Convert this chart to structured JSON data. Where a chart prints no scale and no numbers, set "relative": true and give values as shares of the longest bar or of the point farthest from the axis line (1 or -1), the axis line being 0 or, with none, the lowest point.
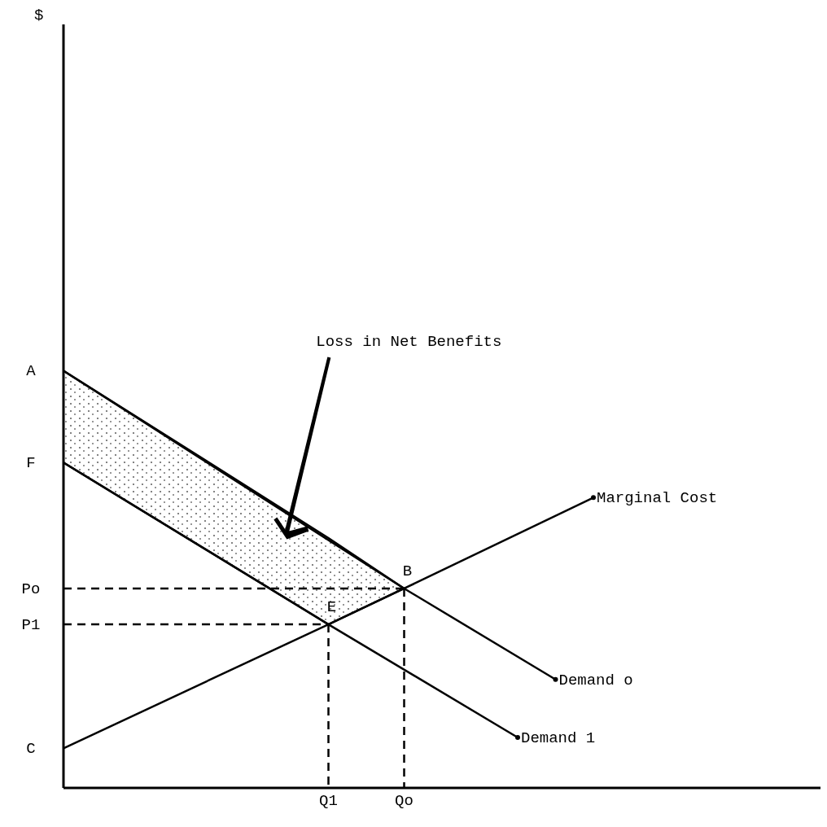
{
  "chart_data": {
    "type": "line",
    "relative": true,
    "categories": [
      null,
      null,
      null,
      null,
      null,
      null,
      null,
      "Q1",
      null,
      "Qo",
      null,
      null,
      null,
      null,
      null,
      null,
      null,
      null,
      null,
      null,
      null
    ],
    "series": [
      {
        "color": "#000000",
        "line_style": "solid",
        "values": [
          1,
          null,
          null,
          null,
          null,
          null,
          null,
          0.599,
          null,
          0.478,
          null,
          null,
          null,
          null,
          null,
          null,
          null,
          null,
          null,
          null,
          null
        ],
        "lower": [
          0.78,
          null,
          null,
          null,
          null,
          null,
          null,
          0.392,
          null,
          0.478,
          null,
          null,
          null,
          null,
          null,
          null,
          null,
          null,
          null,
          null,
          null
        ],
        "upper": [
          1,
          null,
          null,
          null,
          null,
          null,
          null,
          0.599,
          null,
          0.478,
          null,
          null,
          null,
          null,
          null,
          null,
          null,
          null,
          null,
          null,
          null
        ]
      },
      {
        "name": "Demand o",
        "color": "#000000",
        "line_style": "solid",
        "values": [
          1,
          null,
          null,
          null,
          null,
          null,
          null,
          null,
          null,
          0.478,
          null,
          null,
          null,
          0.26,
          null,
          null,
          null,
          null,
          null,
          null,
          null
        ]
      },
      {
        "name": "Demand 1",
        "color": "#000000",
        "line_style": "solid",
        "values": [
          0.78,
          null,
          null,
          null,
          null,
          null,
          null,
          0.392,
          null,
          null,
          null,
          null,
          0.121,
          null,
          null,
          null,
          null,
          null,
          null,
          null,
          null
        ]
      },
      {
        "name": "Marginal Cost",
        "color": "#000000",
        "line_style": "solid",
        "values": [
          0.095,
          null,
          null,
          null,
          null,
          null,
          null,
          0.392,
          null,
          0.478,
          null,
          null,
          null,
          null,
          0.696,
          null,
          null,
          null,
          null,
          null,
          null
        ]
      },
      {
        "color": "#000000",
        "line_style": "dashed",
        "values": [
          0.478,
          null,
          null,
          null,
          null,
          null,
          null,
          null,
          null,
          0.478,
          null,
          null,
          null,
          null,
          null,
          null,
          null,
          null,
          null,
          null,
          null
        ]
      },
      {
        "color": "#000000",
        "line_style": "dashed",
        "values": [
          0.392,
          null,
          null,
          null,
          null,
          null,
          null,
          0.392,
          null,
          null,
          null,
          null,
          null,
          null,
          null,
          null,
          null,
          null,
          null,
          null,
          null
        ]
      },
      {
        "color": "#000000",
        "line_style": "dashed",
        "x": [
          "Qo",
          "Qo"
        ],
        "values": [
          0.478,
          0
        ]
      },
      {
        "color": "#000000",
        "line_style": "dashed",
        "x": [
          "Q1",
          "Q1"
        ],
        "values": [
          0.392,
          0
        ]
      }
    ],
    "annotations": [
      "$",
      "Loss in Net Benefits",
      "A",
      "F",
      "Po",
      "P1",
      "C",
      {
        "text": "B",
        "x": "Qo",
        "y": 0.478
      },
      {
        "text": "E",
        "x": "Q1",
        "y": 0.392
      }
    ]
  }
}
